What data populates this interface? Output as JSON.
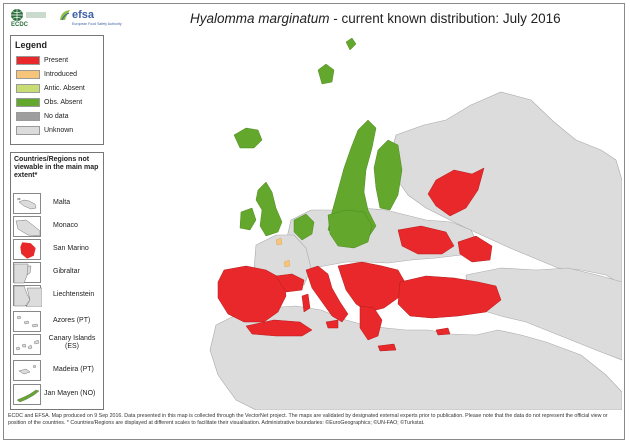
{
  "logos": {
    "ecdc": "ECDC",
    "efsa": "efsa",
    "efsa_subtitle": "European Food Safety Authority"
  },
  "title": {
    "species": "Hyalomma marginatum",
    "rest": " - current known distribution: July 2016"
  },
  "legend": {
    "title": "Legend",
    "items": [
      {
        "label": "Present",
        "color": "#e8282a"
      },
      {
        "label": "Introduced",
        "color": "#f6c57a"
      },
      {
        "label": "Antic. Absent",
        "color": "#c7dc73"
      },
      {
        "label": "Obs. Absent",
        "color": "#63a82c"
      },
      {
        "label": "No data",
        "color": "#9e9e9e"
      },
      {
        "label": "Unknown",
        "color": "#dcdcdc"
      }
    ]
  },
  "regions_box": {
    "title": "Countries/Regions not viewable in the main map extent*",
    "items": [
      {
        "label": "Malta",
        "status_color": "#dcdcdc"
      },
      {
        "label": "Monaco",
        "status_color": "#dcdcdc"
      },
      {
        "label": "San Marino",
        "status_color": "#e8282a"
      },
      {
        "label": "Gibraltar",
        "status_color": "#dcdcdc"
      },
      {
        "label": "Liechtenstein",
        "status_color": "#dcdcdc"
      },
      {
        "label": "Azores (PT)",
        "status_color": "#dcdcdc"
      },
      {
        "label": "Canary Islands (ES)",
        "status_color": "#dcdcdc"
      },
      {
        "label": "Madeira (PT)",
        "status_color": "#dcdcdc"
      },
      {
        "label": "Jan Mayen (NO)",
        "status_color": "#63a82c"
      }
    ]
  },
  "footer": "ECDC and EFSA. Map produced on 9 Sep 2016. Data presented in this map is collected through the VectorNet project. The maps are validated by designated external experts prior to publication. Please note that the data do not represent the official view or position of the countries. * Countries/Regions are displayed at different scales to facilitate their visualisation. Administrative boundaries: ©EuroGeographics; ©UN-FAO; ©Turkstat."
}
